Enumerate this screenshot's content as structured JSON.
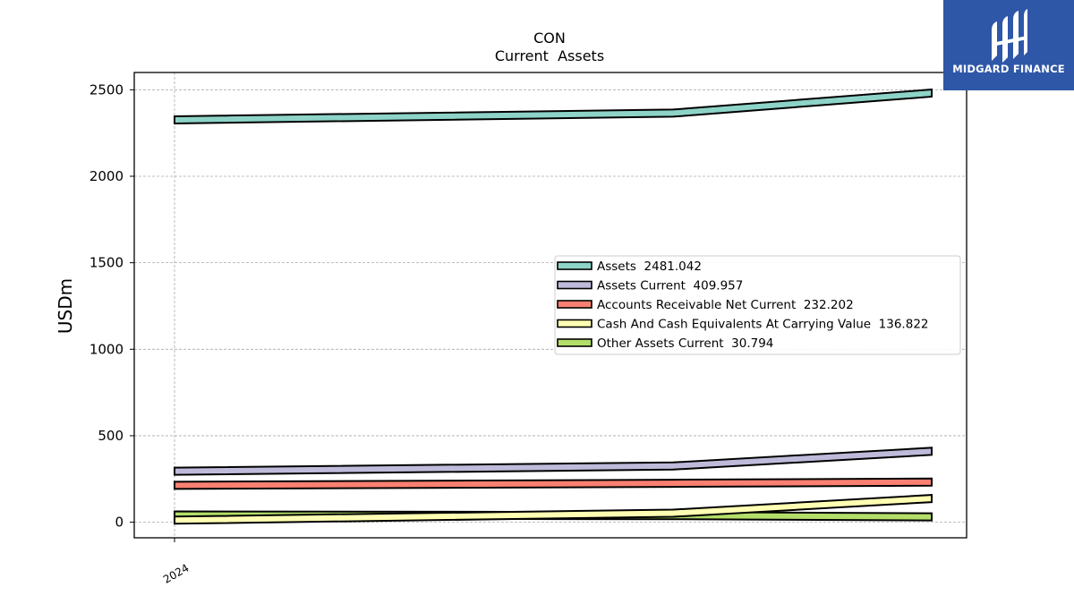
{
  "chart_data": {
    "type": "line",
    "title": "CON",
    "subtitle": "Current  Assets",
    "ylabel": "USDm",
    "xlabel": "",
    "x_tick_labels": [
      "2024"
    ],
    "ylim": [
      -90,
      2600
    ],
    "yticks": [
      0,
      500,
      1000,
      1500,
      2000,
      2500
    ],
    "grid": true,
    "legend_position": "center-right",
    "x": [
      0,
      1,
      1.5
    ],
    "series": [
      {
        "name": "Assets",
        "legend_label": "Assets  2481.042",
        "color": "#8dd3c7",
        "values": [
          2326,
          2365,
          2481
        ]
      },
      {
        "name": "Assets Current",
        "legend_label": "Assets Current  409.957",
        "color": "#bebada",
        "values": [
          295,
          325,
          410
        ]
      },
      {
        "name": "Accounts Receivable Net Current",
        "legend_label": "Accounts Receivable Net Current  232.202",
        "color": "#fb8072",
        "values": [
          213,
          225,
          232
        ]
      },
      {
        "name": "Cash And Cash Equivalents At Carrying Value",
        "legend_label": "Cash And Cash Equivalents At Carrying Value  136.822",
        "color": "#ffffb3",
        "values": [
          12,
          52,
          137
        ]
      },
      {
        "name": "Other Assets Current",
        "legend_label": "Other Assets Current  30.794",
        "color": "#b3de69",
        "values": [
          42,
          38,
          31
        ]
      }
    ]
  },
  "logo": {
    "text": "MIDGARD FINANCE",
    "background": "#2f57a8"
  }
}
